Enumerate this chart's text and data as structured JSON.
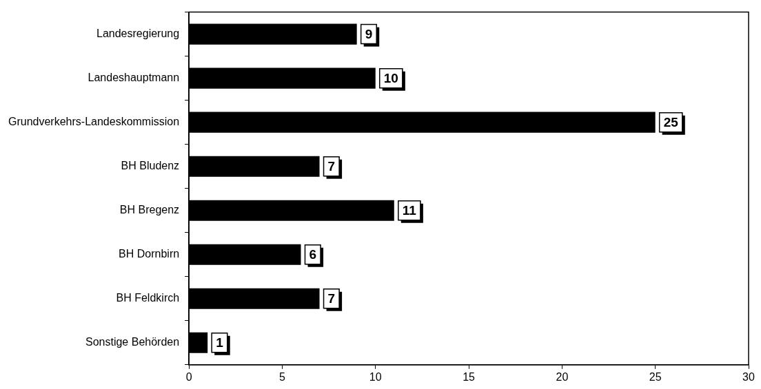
{
  "chart_data": {
    "type": "bar",
    "orientation": "horizontal",
    "categories": [
      "Landesregierung",
      "Landeshauptmann",
      "Grundverkehrs-Landeskommission",
      "BH Bludenz",
      "BH Bregenz",
      "BH Dornbirn",
      "BH Feldkirch",
      "Sonstige Behörden"
    ],
    "values": [
      9,
      10,
      25,
      7,
      11,
      6,
      7,
      1
    ],
    "color": "#000000",
    "xlim": [
      0,
      30
    ],
    "xticks": [
      0,
      5,
      10,
      15,
      20,
      25,
      30
    ],
    "data_labels": true,
    "grid": false,
    "legend": false
  }
}
